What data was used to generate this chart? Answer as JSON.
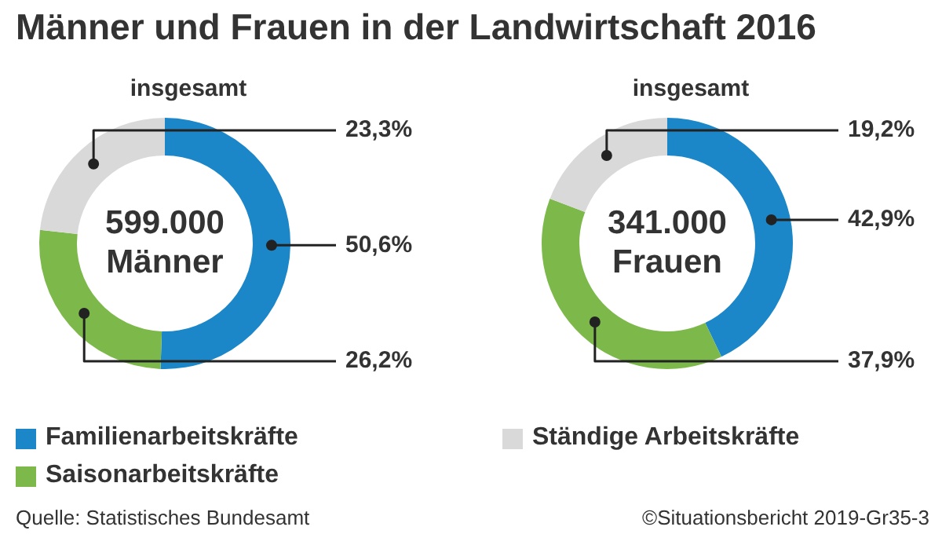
{
  "chart_data": [
    {
      "type": "donut",
      "title": "Männer und Frauen in der Landwirtschaft 2016",
      "subtitle": "insgesamt",
      "categories": [
        "Familienarbeitskräfte",
        "Saisonarbeitskräfte",
        "Ständige Arbeitskräfte"
      ],
      "values": [
        50.6,
        26.2,
        23.3
      ],
      "colors": [
        "#1b86c8",
        "#7cb94a",
        "#d9d9d9"
      ],
      "value_labels": [
        "50,6%",
        "26,2%",
        "23,3%"
      ],
      "legend": "bottom",
      "annotations": [
        "599.000",
        "Männer",
        "Quelle: Statistisches Bundesamt"
      ]
    },
    {
      "type": "donut",
      "subtitle": "insgesamt",
      "categories": [
        null,
        null,
        null
      ],
      "values": [
        42.9,
        37.9,
        19.2
      ],
      "colors": [
        "#1b86c8",
        "#7cb94a",
        "#d9d9d9"
      ],
      "value_labels": [
        "42,9%",
        "37,9%",
        "19,2%"
      ],
      "annotations": [
        "341.000",
        "Frauen",
        "©Situationsbericht 2019-Gr35-3"
      ]
    }
  ]
}
